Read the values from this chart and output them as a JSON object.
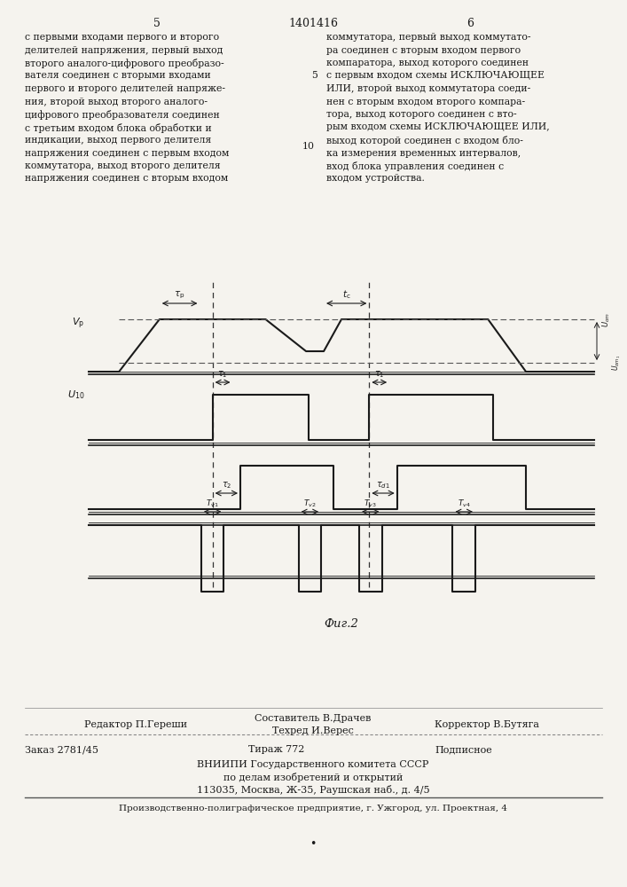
{
  "page_number_left": "5",
  "page_number_center": "1401416",
  "page_number_right": "6",
  "bg_color": "#f5f3ee",
  "text_color": "#1a1a1a",
  "left_column_text": [
    "с первыми входами первого и второго",
    "делителей напряжения, первый выход",
    "второго аналого-цифрового преобразо-",
    "вателя соединен с вторыми входами",
    "первого и второго делителей напряже-",
    "ния, второй выход второго аналого-",
    "цифрового преобразователя соединен",
    "с третьим входом блока обработки и",
    "индикации, выход первого делителя",
    "напряжения соединен с первым входом",
    "коммутатора, выход второго делителя",
    "напряжения соединен с вторым входом"
  ],
  "right_column_text": [
    "коммутатора, первый выход коммутато-",
    "ра соединен с вторым входом первого",
    "компаратора, выход которого соединен",
    "с первым входом схемы ИСКЛЮЧАЮЩЕЕ",
    "ИЛИ, второй выход коммутатора соеди-",
    "нен с вторым входом второго компара-",
    "тора, выход которого соединен с вто-",
    "рым входом схемы ИСКЛЮЧАЮЩЕЕ ИЛИ,",
    "выход которой соединен с входом бло-",
    "ка измерения временных интервалов,",
    "вход блока управления соединен с",
    "входом устройства."
  ],
  "fig_caption": "Фиг.2",
  "footer_editor": "Редактор П.Гереши",
  "footer_compiler": "Составитель В.Драчев",
  "footer_techred": "Техред И.Верес",
  "footer_corrector": "Корректор В.Бутяга",
  "footer_order": "Заказ 2781/45",
  "footer_print": "Тираж 772",
  "footer_subscription": "Подписное",
  "footer_org1": "ВНИИПИ Государственного комитета СССР",
  "footer_org2": "по делам изобретений и открытий",
  "footer_org3": "113035, Москва, Ж-35, Раушская наб., д. 4/5",
  "footer_org4": "Производственно-полиграфическое предприятие, г. Ужгород, ул. Проектная, 4"
}
